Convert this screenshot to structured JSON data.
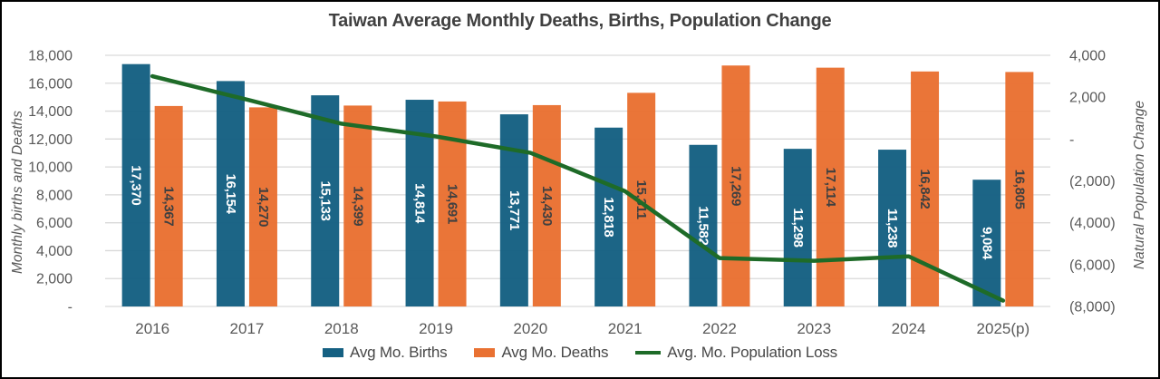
{
  "title": "Taiwan Average Monthly Deaths, Births, Population Change",
  "chart_data": {
    "type": "bar-line-combo",
    "title": "Taiwan Average Monthly Deaths, Births, Population Change",
    "categories": [
      "2016",
      "2017",
      "2018",
      "2019",
      "2020",
      "2021",
      "2022",
      "2023",
      "2024",
      "2025(p)"
    ],
    "series": [
      {
        "name": "Avg Mo. Births",
        "type": "bar",
        "axis": "left",
        "color": "#156082",
        "label_color": "#ffffff",
        "values": [
          17370,
          16154,
          15133,
          14814,
          13771,
          12818,
          11582,
          11298,
          11238,
          9084
        ]
      },
      {
        "name": "Avg Mo. Deaths",
        "type": "bar",
        "axis": "left",
        "color": "#E97132",
        "label_color": "#404040",
        "values": [
          14367,
          14270,
          14399,
          14691,
          14430,
          15311,
          17269,
          17114,
          16842,
          16805
        ]
      },
      {
        "name": "Avg. Mo. Population Loss",
        "type": "line",
        "axis": "right",
        "color": "#1E6B28",
        "values": [
          3003,
          1884,
          734,
          123,
          -659,
          -2493,
          -5687,
          -5816,
          -5604,
          -7721
        ]
      }
    ],
    "left_axis": {
      "title": "Monthly births and Deaths",
      "ticks": [
        "18,000",
        "16,000",
        "14,000",
        "12,000",
        "10,000",
        "8,000",
        "6,000",
        "4,000",
        "2,000",
        "-"
      ],
      "ylim": [
        0,
        18000
      ]
    },
    "right_axis": {
      "title": "Natural Population Change",
      "ticks": [
        "4,000",
        "2,000",
        "-",
        "(2,000)",
        "(4,000)",
        "(6,000)",
        "(8,000)"
      ],
      "ylim": [
        -8000,
        4000
      ]
    },
    "grid": true,
    "legend_position": "bottom",
    "gridline_color": "#D9D9D9",
    "tick_color": "#595959",
    "x_tick_color": "#595959"
  }
}
